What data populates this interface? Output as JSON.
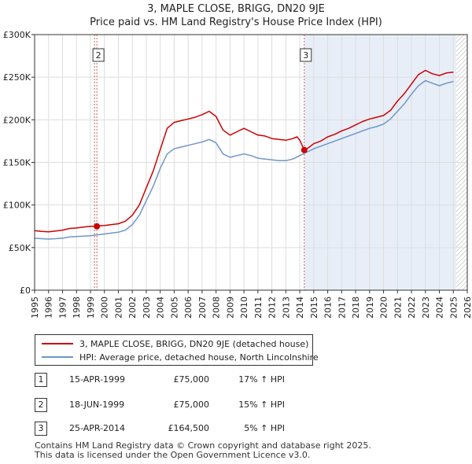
{
  "header": {
    "title": "3, MAPLE CLOSE, BRIGG, DN20 9JE",
    "subtitle": "Price paid vs. HM Land Registry's House Price Index (HPI)"
  },
  "colors": {
    "property": "#cc0000",
    "hpi": "#6f96c8",
    "shade": "#e8eef8",
    "marker_line": "#d06060",
    "grid": "#dddddd"
  },
  "chart_data": {
    "type": "line",
    "title": "Price paid vs. HM Land Registry's House Price Index (HPI)",
    "xlim": [
      1995.0,
      2026.0
    ],
    "ylim": [
      0,
      300000
    ],
    "x_ticks": [
      1995,
      1996,
      1997,
      1998,
      1999,
      2000,
      2001,
      2002,
      2003,
      2004,
      2005,
      2006,
      2007,
      2008,
      2009,
      2010,
      2011,
      2012,
      2013,
      2014,
      2015,
      2016,
      2017,
      2018,
      2019,
      2020,
      2021,
      2022,
      2023,
      2024,
      2025,
      2026
    ],
    "y_ticks": [
      0,
      50000,
      100000,
      150000,
      200000,
      250000,
      300000
    ],
    "y_tick_labels": [
      "£0",
      "£50K",
      "£100K",
      "£150K",
      "£200K",
      "£250K",
      "£300K"
    ],
    "shaded_ranges": [
      [
        2014.32,
        2025.2
      ]
    ],
    "hatched_range": [
      2025.2,
      2026.0
    ],
    "series": [
      {
        "name": "3, MAPLE CLOSE, BRIGG, DN20 9JE (detached house)",
        "x": [
          1995.0,
          1995.5,
          1996.0,
          1996.5,
          1997.0,
          1997.5,
          1998.0,
          1998.5,
          1999.0,
          1999.3,
          1999.5,
          2000.0,
          2000.5,
          2001.0,
          2001.5,
          2002.0,
          2002.5,
          2003.0,
          2003.5,
          2004.0,
          2004.5,
          2005.0,
          2005.5,
          2006.0,
          2006.5,
          2007.0,
          2007.5,
          2008.0,
          2008.5,
          2009.0,
          2009.5,
          2010.0,
          2010.5,
          2011.0,
          2011.5,
          2012.0,
          2012.5,
          2013.0,
          2013.5,
          2013.8,
          2014.0,
          2014.32,
          2014.6,
          2015.0,
          2015.5,
          2016.0,
          2016.5,
          2017.0,
          2017.5,
          2018.0,
          2018.5,
          2019.0,
          2019.5,
          2020.0,
          2020.5,
          2021.0,
          2021.5,
          2022.0,
          2022.5,
          2023.0,
          2023.5,
          2024.0,
          2024.5,
          2025.0
        ],
        "values": [
          70000,
          69000,
          68500,
          69500,
          70500,
          72500,
          73000,
          74000,
          75000,
          75000,
          75500,
          76000,
          77000,
          78000,
          81000,
          88000,
          100000,
          120000,
          140000,
          165000,
          190000,
          197000,
          199000,
          201000,
          203000,
          206000,
          210000,
          204000,
          188000,
          182000,
          186000,
          190000,
          186000,
          182000,
          181000,
          178000,
          177000,
          176000,
          178000,
          180000,
          176000,
          164500,
          167000,
          172000,
          175000,
          180000,
          183000,
          187000,
          190000,
          194000,
          198000,
          201000,
          203000,
          205000,
          211000,
          222000,
          231000,
          242000,
          253000,
          258000,
          254000,
          252000,
          255000,
          256000
        ]
      },
      {
        "name": "HPI: Average price, detached house, North Lincolnshire",
        "x": [
          1995.0,
          1995.5,
          1996.0,
          1996.5,
          1997.0,
          1997.5,
          1998.0,
          1998.5,
          1999.0,
          1999.5,
          2000.0,
          2000.5,
          2001.0,
          2001.5,
          2002.0,
          2002.5,
          2003.0,
          2003.5,
          2004.0,
          2004.5,
          2005.0,
          2005.5,
          2006.0,
          2006.5,
          2007.0,
          2007.5,
          2008.0,
          2008.5,
          2009.0,
          2009.5,
          2010.0,
          2010.5,
          2011.0,
          2011.5,
          2012.0,
          2012.5,
          2013.0,
          2013.5,
          2014.0,
          2014.5,
          2015.0,
          2015.5,
          2016.0,
          2016.5,
          2017.0,
          2017.5,
          2018.0,
          2018.5,
          2019.0,
          2019.5,
          2020.0,
          2020.5,
          2021.0,
          2021.5,
          2022.0,
          2022.5,
          2023.0,
          2023.5,
          2024.0,
          2024.5,
          2025.0
        ],
        "values": [
          61000,
          60500,
          60000,
          60500,
          61000,
          62500,
          63000,
          63500,
          64000,
          65000,
          66000,
          67000,
          68000,
          70500,
          77000,
          88000,
          105000,
          122000,
          143000,
          160000,
          166000,
          168000,
          170000,
          172000,
          174000,
          177000,
          173000,
          160000,
          156000,
          158000,
          160000,
          158000,
          155000,
          154000,
          153000,
          152000,
          152000,
          154000,
          158000,
          162000,
          166000,
          169000,
          172000,
          175000,
          178000,
          181000,
          184000,
          187000,
          190000,
          192000,
          195000,
          201000,
          210000,
          219000,
          230000,
          240000,
          246000,
          243000,
          240000,
          243000,
          245000
        ]
      }
    ],
    "sales": [
      {
        "label": "1",
        "x": 1999.29,
        "value": 75000,
        "show_marker": false
      },
      {
        "label": "2",
        "x": 1999.46,
        "value": 75000,
        "show_marker": true
      },
      {
        "label": "3",
        "x": 2014.32,
        "value": 164500,
        "show_marker": true
      }
    ]
  },
  "legend": {
    "property_label": "3, MAPLE CLOSE, BRIGG, DN20 9JE (detached house)",
    "hpi_label": "HPI: Average price, detached house, North Lincolnshire"
  },
  "transactions": [
    {
      "num": "1",
      "date": "15-APR-1999",
      "price": "£75,000",
      "hpi": "17% ↑ HPI"
    },
    {
      "num": "2",
      "date": "18-JUN-1999",
      "price": "£75,000",
      "hpi": "15% ↑ HPI"
    },
    {
      "num": "3",
      "date": "25-APR-2014",
      "price": "£164,500",
      "hpi": "5% ↑ HPI"
    }
  ],
  "footer": {
    "line1": "Contains HM Land Registry data © Crown copyright and database right 2025.",
    "line2": "This data is licensed under the Open Government Licence v3.0."
  }
}
